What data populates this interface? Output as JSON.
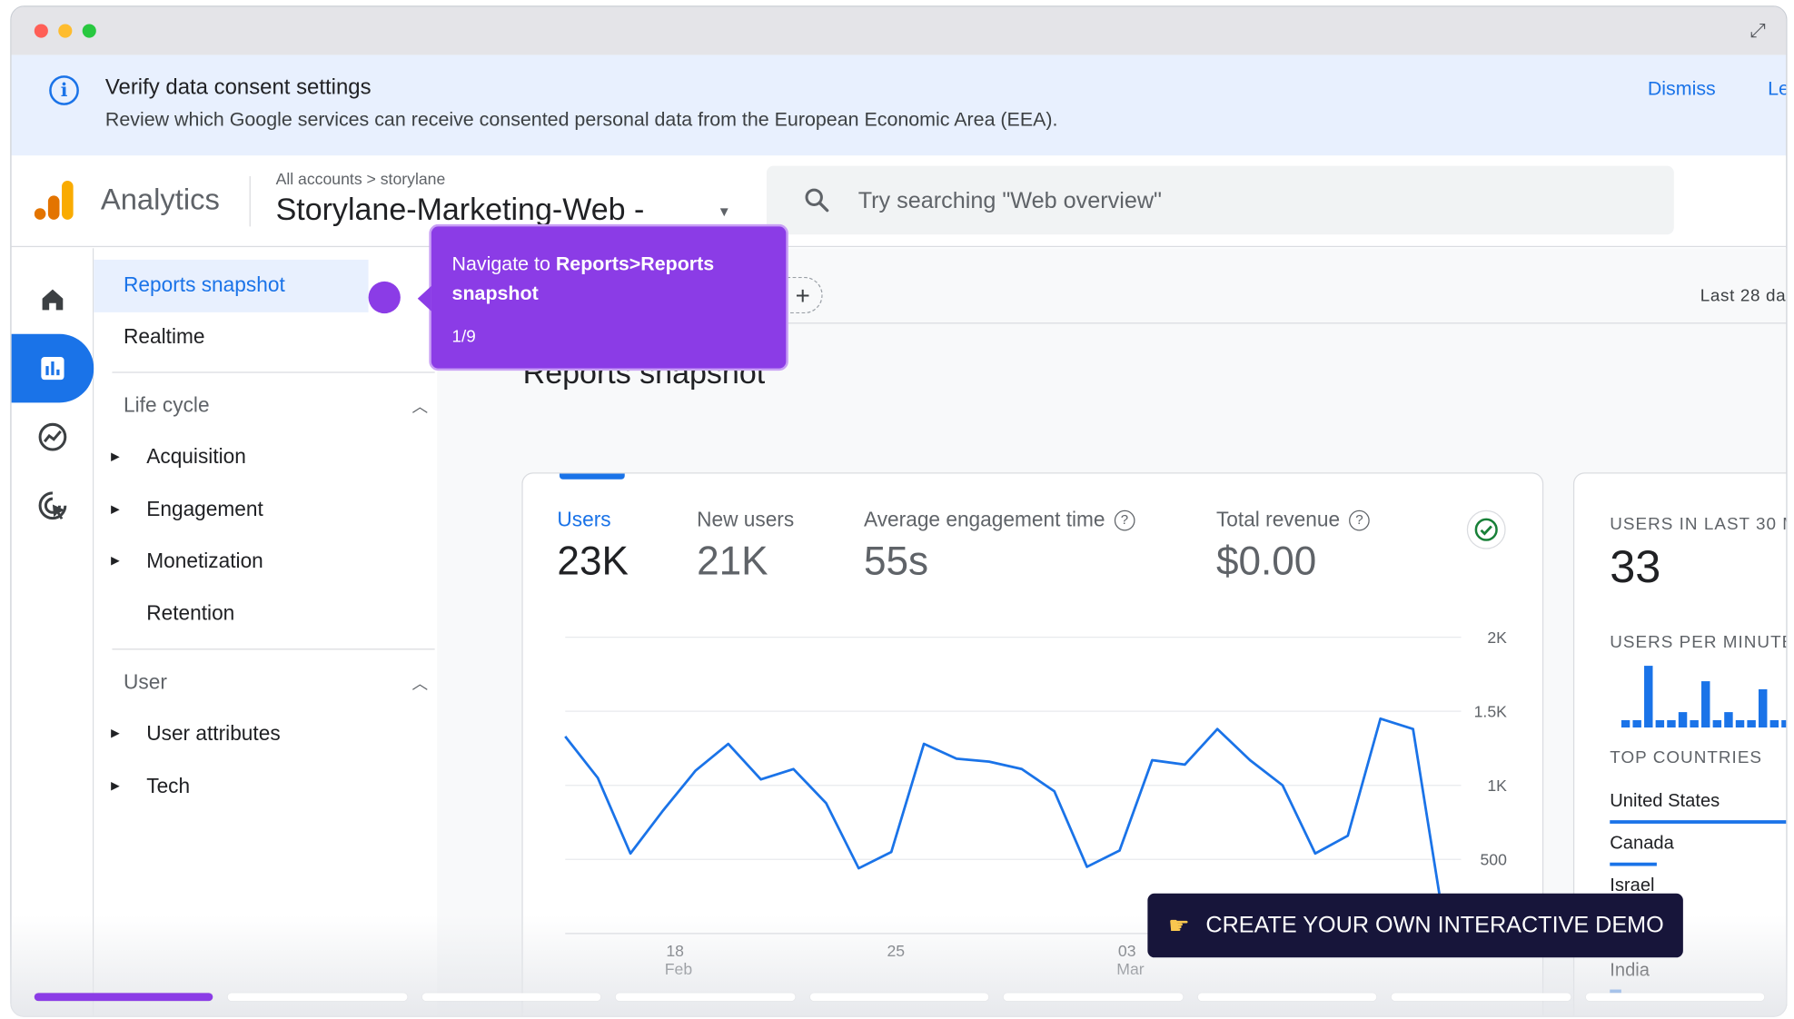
{
  "banner": {
    "title": "Verify data consent settings",
    "description": "Review which Google services can receive consented personal data from the European Economic Area (EEA).",
    "dismiss": "Dismiss",
    "learn_more": "Le"
  },
  "header": {
    "app_name": "Analytics",
    "breadcrumb": "All accounts > storylane",
    "property": "Storylane-Marketing-Web -",
    "search_placeholder": "Try searching \"Web overview\""
  },
  "nav": {
    "reports_snapshot": "Reports snapshot",
    "realtime": "Realtime",
    "lifecycle_header": "Life cycle",
    "lifecycle_items": [
      "Acquisition",
      "Engagement",
      "Monetization",
      "Retention"
    ],
    "user_header": "User",
    "user_items": [
      "User attributes",
      "Tech"
    ]
  },
  "content": {
    "compare_chip": "rison",
    "date_range": "Last 28 da",
    "page_title": "Reports snapshot"
  },
  "metrics": [
    {
      "label": "Users",
      "value": "23K"
    },
    {
      "label": "New users",
      "value": "21K"
    },
    {
      "label": "Average engagement time",
      "value": "55s"
    },
    {
      "label": "Total revenue",
      "value": "$0.00"
    }
  ],
  "chart_data": {
    "type": "line",
    "series": [
      {
        "values": [
          1330,
          1050,
          540,
          830,
          1100,
          1280,
          1040,
          1110,
          880,
          440,
          550,
          1280,
          1180,
          1160,
          1110,
          960,
          450,
          560,
          1170,
          1140,
          1380,
          1170,
          1000,
          540,
          660,
          1450,
          1380,
          0
        ]
      }
    ],
    "x_tick_labels": [
      {
        "day": "18",
        "month": "Feb"
      },
      {
        "day": "25",
        "month": ""
      },
      {
        "day": "03",
        "month": "Mar"
      }
    ],
    "y_tick_labels": [
      "2K",
      "1.5K",
      "1K",
      "500"
    ],
    "ylim": [
      0,
      2000
    ],
    "grid": true
  },
  "realtime": {
    "users_label": "USERS IN LAST 30 MI",
    "users_value": "33",
    "per_minute_label": "USERS PER MINUTE",
    "per_minute_bars": [
      0.12,
      0.12,
      1.0,
      0.12,
      0.12,
      0.25,
      0.12,
      0.75,
      0.12,
      0.25,
      0.12,
      0.12,
      0.62,
      0.12,
      0.12,
      0.45
    ],
    "top_countries_label": "TOP COUNTRIES",
    "countries": [
      {
        "name": "United States",
        "share": 1.0
      },
      {
        "name": "Canada",
        "share": 0.25
      },
      {
        "name": "Israel",
        "share": 0
      },
      {
        "name": "India",
        "share": 0.06
      }
    ]
  },
  "tooltip": {
    "text_prefix": "Navigate to ",
    "text_bold": "Reports>Reports snapshot",
    "step": "1/9"
  },
  "cta": {
    "label": "CREATE YOUR OWN INTERACTIVE DEMO",
    "icon": "pointing-hand-icon"
  },
  "progress": {
    "total_steps": 9,
    "current_step": 1
  },
  "colors": {
    "accent": "#1a73e8",
    "tooltip": "#8b3ce6",
    "cta_bg": "#17153a",
    "logo_orange": "#f9ab00",
    "logo_dark_orange": "#e37400",
    "success": "#188038"
  }
}
